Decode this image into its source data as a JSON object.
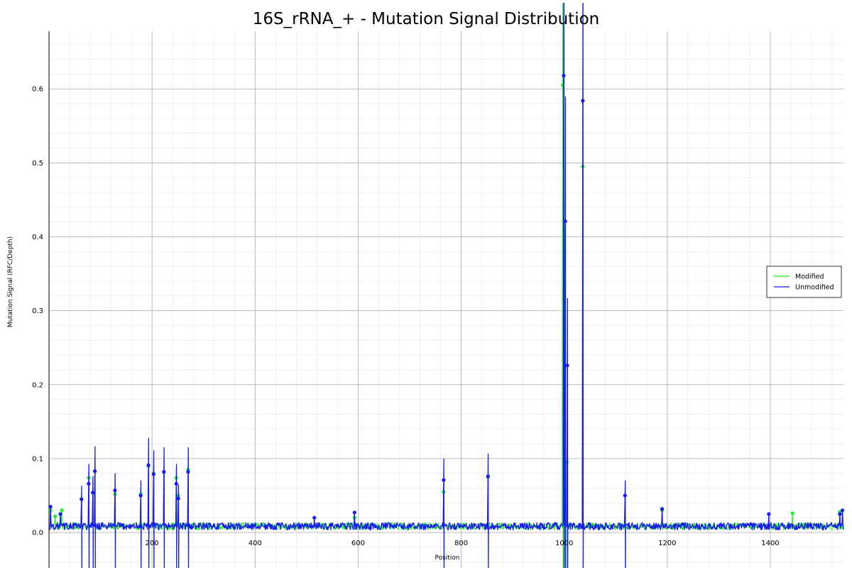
{
  "chart_data": {
    "type": "line",
    "title": "16S_rRNA_+ - Mutation Signal Distribution",
    "xlabel": "Position",
    "ylabel": "Mutation Signal (RFC/Depth)",
    "xlim": [
      0,
      1542
    ],
    "ylim": [
      -0.048,
      0.678
    ],
    "x_ticks": [
      200,
      400,
      600,
      800,
      1000,
      1200,
      1400
    ],
    "y_ticks": [
      0.0,
      0.1,
      0.2,
      0.3,
      0.4,
      0.5,
      0.6
    ],
    "grid": true,
    "minor_grid": true,
    "legend_position": "right",
    "baseline": 0.008,
    "series": [
      {
        "name": "Modified",
        "color": "#22ee22",
        "peaks": [
          {
            "x": 3,
            "y": 0.03
          },
          {
            "x": 12,
            "y": 0.022
          },
          {
            "x": 25,
            "y": 0.03
          },
          {
            "x": 63,
            "y": 0.045
          },
          {
            "x": 77,
            "y": 0.074
          },
          {
            "x": 85,
            "y": 0.054
          },
          {
            "x": 89,
            "y": 0.083
          },
          {
            "x": 128,
            "y": 0.052
          },
          {
            "x": 178,
            "y": 0.052
          },
          {
            "x": 193,
            "y": 0.09
          },
          {
            "x": 203,
            "y": 0.08
          },
          {
            "x": 223,
            "y": 0.082
          },
          {
            "x": 247,
            "y": 0.074
          },
          {
            "x": 251,
            "y": 0.05
          },
          {
            "x": 270,
            "y": 0.085
          },
          {
            "x": 593,
            "y": 0.02
          },
          {
            "x": 766,
            "y": 0.055
          },
          {
            "x": 852,
            "y": 0.075
          },
          {
            "x": 997,
            "y": 0.605
          },
          {
            "x": 1000,
            "y": 0.345
          },
          {
            "x": 1005,
            "y": 0.095
          },
          {
            "x": 1036,
            "y": 0.495
          },
          {
            "x": 1118,
            "y": 0.05
          },
          {
            "x": 1190,
            "y": 0.03
          },
          {
            "x": 1443,
            "y": 0.026
          },
          {
            "x": 1535,
            "y": 0.028
          }
        ]
      },
      {
        "name": "Unmodified",
        "color": "#1a1aee",
        "peaks": [
          {
            "x": 3,
            "y": 0.035
          },
          {
            "x": 22,
            "y": 0.025
          },
          {
            "x": 63,
            "y": 0.045
          },
          {
            "x": 77,
            "y": 0.066
          },
          {
            "x": 85,
            "y": 0.054
          },
          {
            "x": 89,
            "y": 0.083
          },
          {
            "x": 128,
            "y": 0.057
          },
          {
            "x": 178,
            "y": 0.05
          },
          {
            "x": 193,
            "y": 0.091
          },
          {
            "x": 203,
            "y": 0.079
          },
          {
            "x": 223,
            "y": 0.082
          },
          {
            "x": 247,
            "y": 0.066
          },
          {
            "x": 251,
            "y": 0.046
          },
          {
            "x": 270,
            "y": 0.082
          },
          {
            "x": 515,
            "y": 0.02
          },
          {
            "x": 593,
            "y": 0.027
          },
          {
            "x": 766,
            "y": 0.071
          },
          {
            "x": 852,
            "y": 0.076
          },
          {
            "x": 999,
            "y": 0.618
          },
          {
            "x": 1002,
            "y": 0.421
          },
          {
            "x": 1006,
            "y": 0.226
          },
          {
            "x": 1036,
            "y": 0.584
          },
          {
            "x": 1118,
            "y": 0.05
          },
          {
            "x": 1190,
            "y": 0.032
          },
          {
            "x": 1397,
            "y": 0.025
          },
          {
            "x": 1535,
            "y": 0.025
          },
          {
            "x": 1540,
            "y": 0.03
          }
        ]
      }
    ]
  }
}
